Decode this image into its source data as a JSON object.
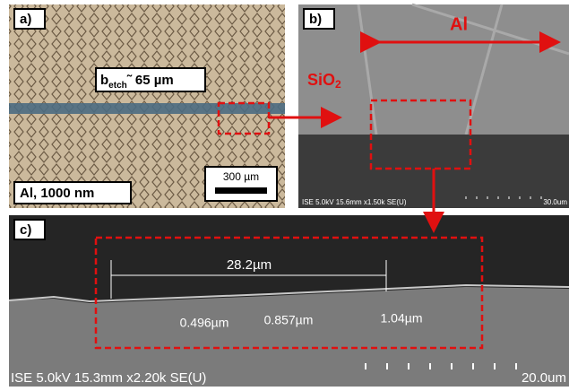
{
  "panel_a": {
    "label": "a)",
    "width_label": {
      "main": "b",
      "sub": "etch",
      "rest": "˜ 65 µm"
    },
    "scale_bar": "300 µm",
    "sample": "Al, 1000 nm"
  },
  "panel_b": {
    "label": "b)",
    "metal": "Al",
    "oxide": {
      "main": "SiO",
      "sub": "2"
    },
    "info": "ISE 5.0kV 15.6mm x1.50k SE(U)",
    "scale": "30.0um"
  },
  "panel_c": {
    "label": "c)",
    "width": "28.2µm",
    "heights": [
      "0.496µm",
      "0.857µm",
      "1.04µm"
    ],
    "info": "ISE 5.0kV 15.3mm x2.20k SE(U)",
    "scale": "20.0um"
  }
}
